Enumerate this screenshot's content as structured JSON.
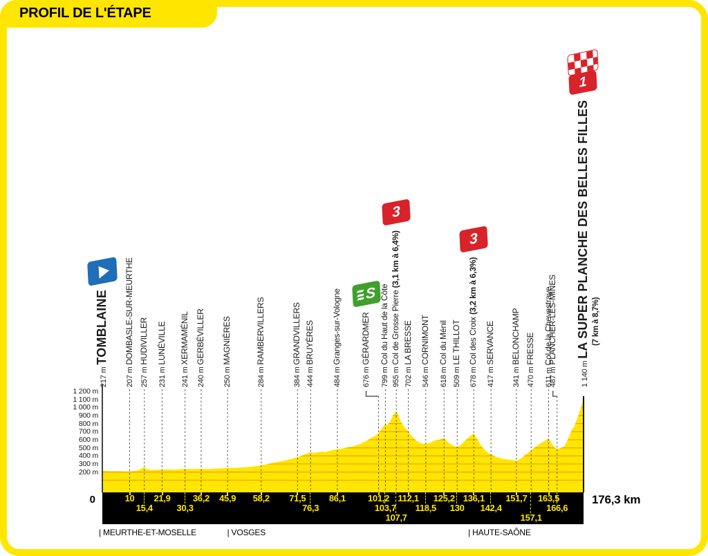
{
  "title": "PROFIL DE L'ÉTAPE",
  "colors": {
    "yellow": "#FFE600",
    "orange": "#F59C00",
    "red": "#D8232A",
    "green": "#3FA12C",
    "blue": "#1F6EB7",
    "line_gray": "#55565A",
    "text": "#1A1A1A"
  },
  "chart_data": {
    "type": "area",
    "title": "PROFIL DE L'ÉTAPE",
    "x_unit": "km",
    "y_unit": "m",
    "x_range": [
      0,
      176.3
    ],
    "y_axis_labels": [
      "1 200 m",
      "1 100 m",
      "1 000 m",
      "900 m",
      "800 m",
      "700 m",
      "600 m",
      "500 m",
      "400 m",
      "300 m",
      "200 m"
    ],
    "y_axis_values": [
      1200,
      1100,
      1000,
      900,
      800,
      700,
      600,
      500,
      400,
      300,
      200
    ],
    "grid": "horizontal-inside-area",
    "start_km_label": "0",
    "total_distance_label": "176,3 km",
    "departments": [
      {
        "label": "MEURTHE-ET-MOSELLE",
        "from_km": 0
      },
      {
        "label": "VOSGES",
        "from_km": 47
      },
      {
        "label": "HAUTE-SAÔNE",
        "from_km": 135.3
      }
    ],
    "points": [
      {
        "km": 0,
        "elev_m": 217,
        "elev_label": "217 m",
        "name": "TOMBLAINE",
        "emphasis": true,
        "marker": "start",
        "marker_label": "",
        "km_label": null,
        "row": null
      },
      {
        "km": 10,
        "elev_m": 207,
        "elev_label": "207 m",
        "name": "DOMBASLE-SUR-MEURTHE",
        "km_label": "10",
        "row": 1
      },
      {
        "km": 15.4,
        "elev_m": 257,
        "elev_label": "257 m",
        "name": "HUDIVILLER",
        "km_label": "15,4",
        "row": 2
      },
      {
        "km": 21.9,
        "elev_m": 231,
        "elev_label": "231 m",
        "name": "LUNÉVILLE",
        "km_label": "21,9",
        "row": 1
      },
      {
        "km": 30.3,
        "elev_m": 241,
        "elev_label": "241 m",
        "name": "XERMAMÉNIL",
        "km_label": "30,3",
        "row": 2
      },
      {
        "km": 36.2,
        "elev_m": 240,
        "elev_label": "240 m",
        "name": "GERBÉVILLER",
        "km_label": "36,2",
        "row": 1
      },
      {
        "km": 45.9,
        "elev_m": 250,
        "elev_label": "250 m",
        "name": "MAGNIÈRES",
        "km_label": "45,9",
        "row": 1
      },
      {
        "km": 58.2,
        "elev_m": 284,
        "elev_label": "284 m",
        "name": "RAMBERVILLERS",
        "km_label": "58,2",
        "row": 1
      },
      {
        "km": 71.5,
        "elev_m": 384,
        "elev_label": "384 m",
        "name": "GRANDVILLERS",
        "km_label": "71,5",
        "row": 1
      },
      {
        "km": 76.3,
        "elev_m": 444,
        "elev_label": "444 m",
        "name": "BRUYÈRES",
        "km_label": "76,3",
        "row": 2
      },
      {
        "km": 86.1,
        "elev_m": 484,
        "elev_label": "484 m",
        "name": "Granges-sur-Vologne",
        "km_label": "86,1",
        "row": 1
      },
      {
        "km": 101.2,
        "elev_m": 676,
        "elev_label": "676 m",
        "name": "GÉRARDMER",
        "km_label": "101,2",
        "row": 1,
        "marker": "sprint",
        "marker_label": "S"
      },
      {
        "km": 103.7,
        "elev_m": 799,
        "elev_label": "799 m",
        "name": "Col du Haut de la Côte",
        "km_label": "103,7",
        "row": 2
      },
      {
        "km": 107.7,
        "elev_m": 955,
        "elev_label": "955 m",
        "name": "Col de Grosse Pierre",
        "suffix": "(3,1 km à 6,4%)",
        "km_label": "107,7",
        "row": 3,
        "marker": "cat3",
        "marker_label": "3"
      },
      {
        "km": 112.1,
        "elev_m": 702,
        "elev_label": "702 m",
        "name": "LA BRESSE",
        "km_label": "112,1",
        "row": 1
      },
      {
        "km": 118.5,
        "elev_m": 546,
        "elev_label": "546 m",
        "name": "CORNIMONT",
        "km_label": "118,5",
        "row": 2
      },
      {
        "km": 125.2,
        "elev_m": 618,
        "elev_label": "618 m",
        "name": "Col du Ménil",
        "km_label": "125,2",
        "row": 1
      },
      {
        "km": 130,
        "elev_m": 509,
        "elev_label": "509 m",
        "name": "LE THILLOT",
        "km_label": "130",
        "row": 2
      },
      {
        "km": 136.1,
        "elev_m": 678,
        "elev_label": "678 m",
        "name": "Col des Croix",
        "suffix": "(3,2 km à 6,3%)",
        "km_label": "136,1",
        "row": 1,
        "marker": "cat3",
        "marker_label": "3"
      },
      {
        "km": 142.4,
        "elev_m": 417,
        "elev_label": "417 m",
        "name": "SERVANCE",
        "km_label": "142,4",
        "row": 2
      },
      {
        "km": 151.7,
        "elev_m": 341,
        "elev_label": "341 m",
        "name": "BELONCHAMP",
        "km_label": "151,7",
        "row": 1
      },
      {
        "km": 157.1,
        "elev_m": 470,
        "elev_label": "470 m",
        "name": "FRESSE",
        "km_label": "157,1",
        "row": 3
      },
      {
        "km": 163.5,
        "elev_m": 611,
        "elev_label": "611 m",
        "name": "Col de la Chevestraye",
        "km_label": "163,5",
        "row": 1
      },
      {
        "km": 166.6,
        "elev_m": 487,
        "elev_label": "487 m",
        "name": "PLANCHER-LES-MINES",
        "km_label": "166,6",
        "row": 2
      },
      {
        "km": 176.3,
        "elev_m": 1140,
        "elev_label": "1 140 m",
        "name": "LA SUPER PLANCHE DES BELLES FILLES",
        "subtitle": "(7 km à 8,7%)",
        "emphasis": true,
        "marker": "finish",
        "marker_label": "1",
        "km_label": null,
        "row": null
      }
    ],
    "profile": [
      [
        0,
        217
      ],
      [
        3,
        210
      ],
      [
        6,
        212
      ],
      [
        8,
        206
      ],
      [
        10,
        207
      ],
      [
        12,
        215
      ],
      [
        13.5,
        224
      ],
      [
        14.6,
        250
      ],
      [
        15.4,
        257
      ],
      [
        16.3,
        240
      ],
      [
        18,
        228
      ],
      [
        20,
        229
      ],
      [
        21.9,
        231
      ],
      [
        24,
        235
      ],
      [
        27,
        230
      ],
      [
        30.3,
        241
      ],
      [
        33,
        236
      ],
      [
        36.2,
        240
      ],
      [
        39,
        237
      ],
      [
        42,
        244
      ],
      [
        45.9,
        250
      ],
      [
        49,
        252
      ],
      [
        52,
        259
      ],
      [
        55,
        267
      ],
      [
        58.2,
        284
      ],
      [
        60.5,
        298
      ],
      [
        63,
        318
      ],
      [
        65,
        331
      ],
      [
        67,
        345
      ],
      [
        69,
        362
      ],
      [
        71.5,
        384
      ],
      [
        73,
        402
      ],
      [
        74.7,
        428
      ],
      [
        76.3,
        444
      ],
      [
        78,
        439
      ],
      [
        80,
        453
      ],
      [
        82,
        449
      ],
      [
        84,
        468
      ],
      [
        86.1,
        484
      ],
      [
        88,
        492
      ],
      [
        90,
        506
      ],
      [
        92,
        521
      ],
      [
        94,
        541
      ],
      [
        96,
        571
      ],
      [
        98,
        612
      ],
      [
        100,
        651
      ],
      [
        101.2,
        676
      ],
      [
        102.4,
        741
      ],
      [
        103.7,
        799
      ],
      [
        104.5,
        782
      ],
      [
        105.5,
        833
      ],
      [
        106.5,
        901
      ],
      [
        107.7,
        955
      ],
      [
        108.5,
        898
      ],
      [
        109.5,
        818
      ],
      [
        110.6,
        757
      ],
      [
        112.1,
        702
      ],
      [
        113.5,
        641
      ],
      [
        115,
        589
      ],
      [
        116.6,
        558
      ],
      [
        118.5,
        546
      ],
      [
        120,
        561
      ],
      [
        121.8,
        592
      ],
      [
        123.5,
        601
      ],
      [
        125.2,
        618
      ],
      [
        126.6,
        569
      ],
      [
        128.2,
        533
      ],
      [
        130,
        509
      ],
      [
        131.5,
        541
      ],
      [
        133,
        592
      ],
      [
        134.6,
        641
      ],
      [
        136.1,
        678
      ],
      [
        137.5,
        599
      ],
      [
        139,
        519
      ],
      [
        140.6,
        459
      ],
      [
        142.4,
        417
      ],
      [
        144.2,
        391
      ],
      [
        146,
        372
      ],
      [
        148.2,
        359
      ],
      [
        150,
        349
      ],
      [
        151.7,
        341
      ],
      [
        153,
        362
      ],
      [
        154.6,
        403
      ],
      [
        156,
        441
      ],
      [
        157.1,
        470
      ],
      [
        158.6,
        512
      ],
      [
        160,
        546
      ],
      [
        161.8,
        582
      ],
      [
        163.5,
        611
      ],
      [
        164.5,
        559
      ],
      [
        165.6,
        508
      ],
      [
        166.6,
        487
      ],
      [
        167.6,
        496
      ],
      [
        168.6,
        507
      ],
      [
        169.3,
        521
      ],
      [
        170.1,
        574
      ],
      [
        170.9,
        634
      ],
      [
        171.6,
        692
      ],
      [
        172.3,
        742
      ],
      [
        172.9,
        762
      ],
      [
        173.6,
        833
      ],
      [
        174.3,
        893
      ],
      [
        174.9,
        952
      ],
      [
        175.5,
        1024
      ],
      [
        176,
        1085
      ],
      [
        176.3,
        1140
      ]
    ]
  }
}
